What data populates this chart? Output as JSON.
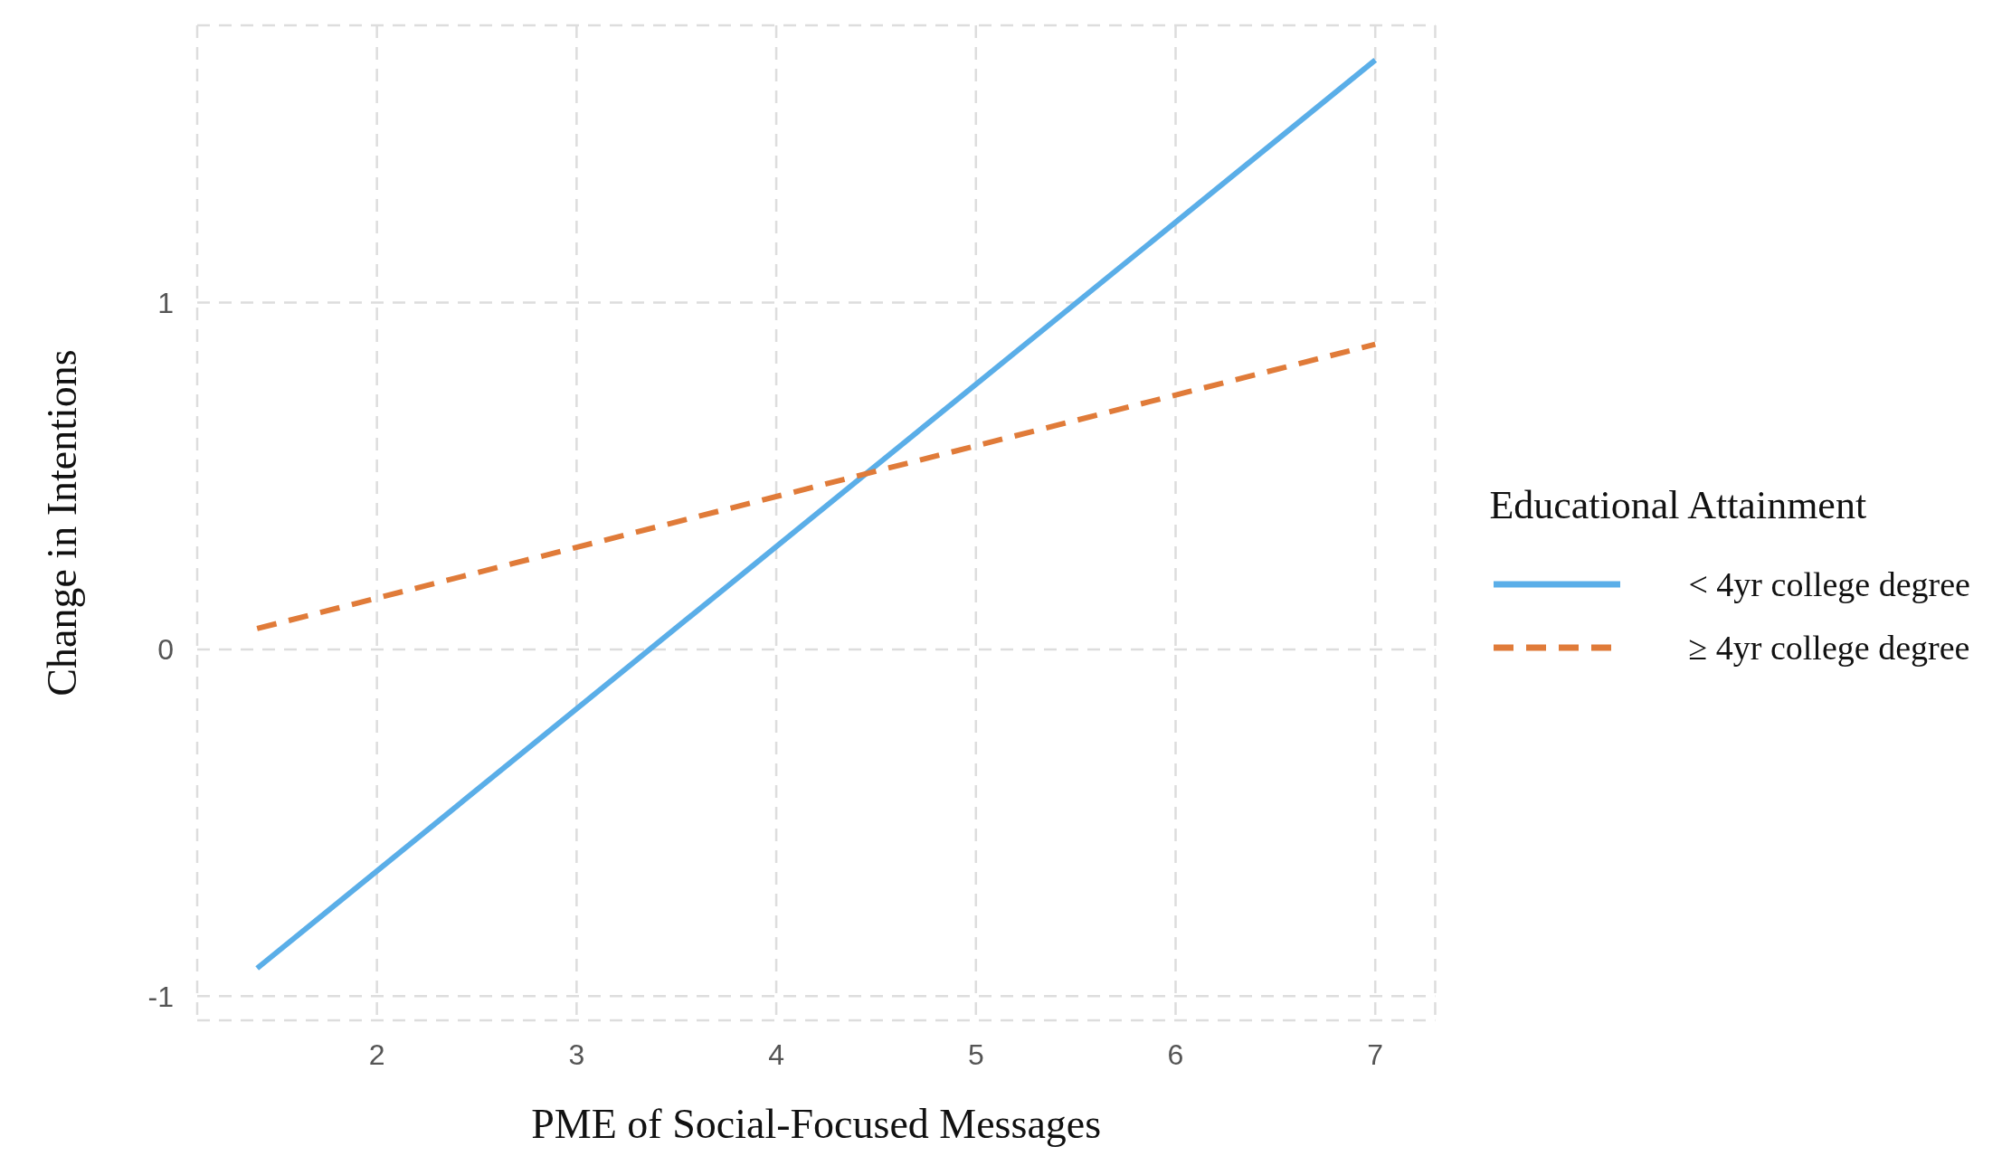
{
  "chart_data": {
    "type": "line",
    "xlabel": "PME of Social-Focused Messages",
    "ylabel": "Change in Intentions",
    "legend_title": "Educational Attainment",
    "x": [
      1.4,
      7
    ],
    "series": [
      {
        "name": "< 4yr college degree",
        "color": "#5aaee8",
        "line_style": "solid",
        "values": [
          -0.92,
          1.7
        ]
      },
      {
        "name": "≥ 4yr college degree",
        "color": "#e07b39",
        "line_style": "dashed",
        "values": [
          0.06,
          0.88
        ]
      }
    ],
    "xlim": [
      1.1,
      7.3
    ],
    "xticks": [
      2,
      3,
      4,
      5,
      6,
      7
    ],
    "ylim": [
      -1.07,
      1.8
    ],
    "yticks": [
      -1,
      0,
      1
    ],
    "grid": true,
    "legend": "right",
    "marker": "none"
  }
}
